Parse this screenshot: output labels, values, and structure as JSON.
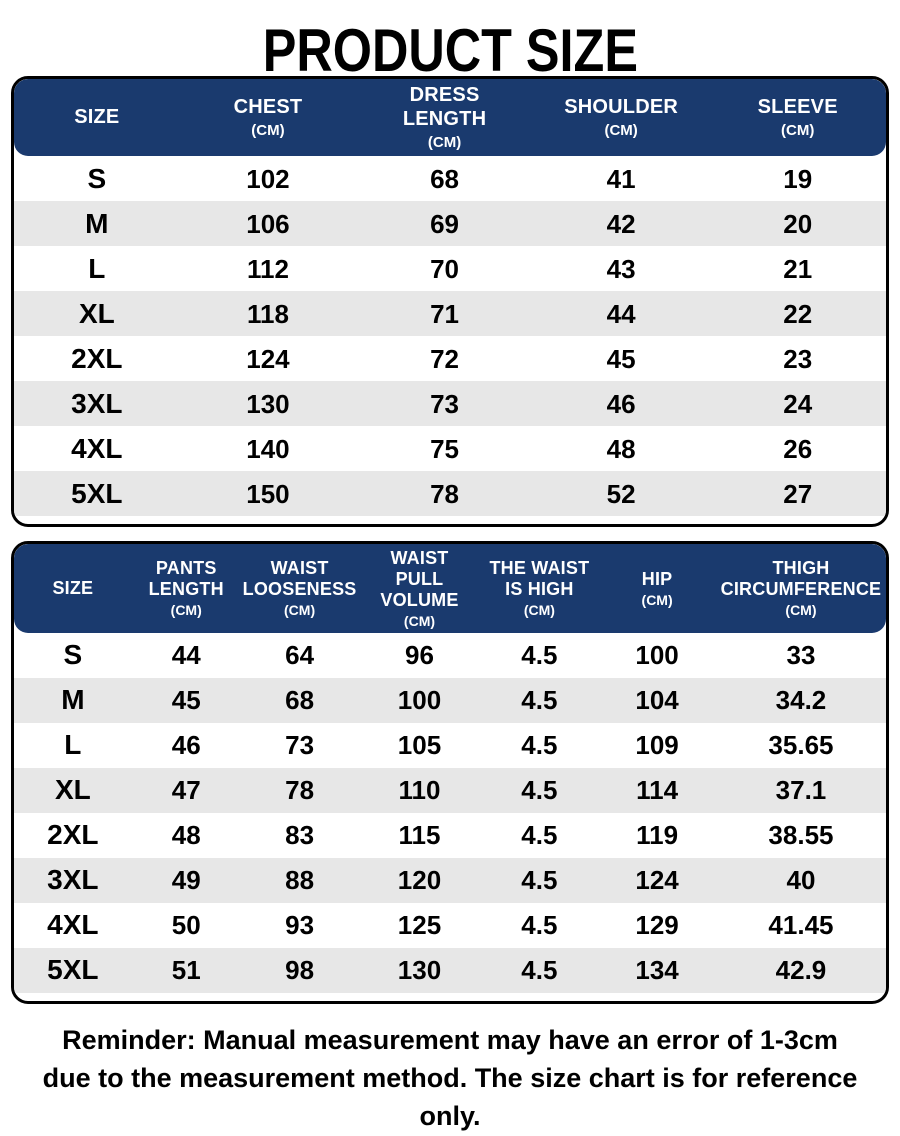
{
  "page": {
    "title": "PRODUCT SIZE"
  },
  "colors": {
    "header_bg": "#1A3A6E",
    "header_text": "#FFFFFF",
    "row_stripe": "#E7E7E7",
    "table_border": "#000000",
    "text": "#000000"
  },
  "tables": [
    {
      "id": "garment-top-size-table",
      "columns": [
        {
          "lines": [
            "SIZE"
          ],
          "unit": ""
        },
        {
          "lines": [
            "CHEST"
          ],
          "unit": "(CM)"
        },
        {
          "lines": [
            "DRESS",
            "LENGTH"
          ],
          "unit": "(CM)"
        },
        {
          "lines": [
            "SHOULDER"
          ],
          "unit": "(CM)"
        },
        {
          "lines": [
            "SLEEVE"
          ],
          "unit": "(CM)"
        }
      ],
      "rows": [
        [
          "S",
          "102",
          "68",
          "41",
          "19"
        ],
        [
          "M",
          "106",
          "69",
          "42",
          "20"
        ],
        [
          "L",
          "112",
          "70",
          "43",
          "21"
        ],
        [
          "XL",
          "118",
          "71",
          "44",
          "22"
        ],
        [
          "2XL",
          "124",
          "72",
          "45",
          "23"
        ],
        [
          "3XL",
          "130",
          "73",
          "46",
          "24"
        ],
        [
          "4XL",
          "140",
          "75",
          "48",
          "26"
        ],
        [
          "5XL",
          "150",
          "78",
          "52",
          "27"
        ]
      ]
    },
    {
      "id": "pants-size-table",
      "columns": [
        {
          "lines": [
            "SIZE"
          ],
          "unit": ""
        },
        {
          "lines": [
            "PANTS",
            "LENGTH"
          ],
          "unit": "(CM)"
        },
        {
          "lines": [
            "WAIST",
            "LOOSENESS"
          ],
          "unit": "(CM)"
        },
        {
          "lines": [
            "WAIST",
            "PULL VOLUME"
          ],
          "unit": "(CM)"
        },
        {
          "lines": [
            "THE WAIST",
            "IS HIGH"
          ],
          "unit": "(CM)"
        },
        {
          "lines": [
            "HIP"
          ],
          "unit": "(CM)"
        },
        {
          "lines": [
            "THIGH",
            "CIRCUMFERENCE"
          ],
          "unit": "(CM)"
        }
      ],
      "rows": [
        [
          "S",
          "44",
          "64",
          "96",
          "4.5",
          "100",
          "33"
        ],
        [
          "M",
          "45",
          "68",
          "100",
          "4.5",
          "104",
          "34.2"
        ],
        [
          "L",
          "46",
          "73",
          "105",
          "4.5",
          "109",
          "35.65"
        ],
        [
          "XL",
          "47",
          "78",
          "110",
          "4.5",
          "114",
          "37.1"
        ],
        [
          "2XL",
          "48",
          "83",
          "115",
          "4.5",
          "119",
          "38.55"
        ],
        [
          "3XL",
          "49",
          "88",
          "120",
          "4.5",
          "124",
          "40"
        ],
        [
          "4XL",
          "50",
          "93",
          "125",
          "4.5",
          "129",
          "41.45"
        ],
        [
          "5XL",
          "51",
          "98",
          "130",
          "4.5",
          "134",
          "42.9"
        ]
      ]
    }
  ],
  "reminder": {
    "line1": "Reminder: Manual measurement may have an error of 1-3cm",
    "line2": "due to the measurement method. The size chart is for reference only."
  }
}
